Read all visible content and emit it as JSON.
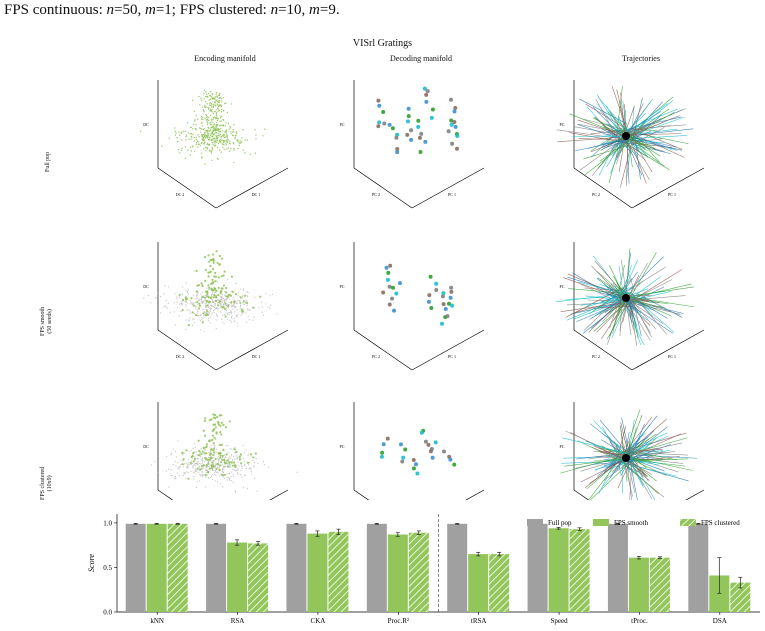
{
  "caption": "FPS continuous: n=50, m=1; FPS clustered: n=10, m=9.",
  "caption_parts": {
    "a": "FPS continuous: ",
    "n1": "n",
    "eq1": "=50, ",
    "m1": "m",
    "eq2": "=1; FPS clustered: ",
    "n2": "n",
    "eq3": "=10, ",
    "m2": "m",
    "eq4": "=9."
  },
  "figure_title": "VISrl Gratings",
  "column_titles": [
    "Encoding manifold",
    "Decoding manifold",
    "Trajectories"
  ],
  "row_labels": [
    {
      "line1": "Full pop",
      "line2": ""
    },
    {
      "line1": "FPS smooth",
      "line2": "(50 seeds)"
    },
    {
      "line1": "FPS clustered",
      "line2": "(10x9)"
    }
  ],
  "axis_labels": {
    "encoding": {
      "z": "DC",
      "x": "DC 2",
      "y": "DC 1"
    },
    "decoding": {
      "z": "PC",
      "x": "PC 2",
      "y": "PC 1"
    },
    "trajectories": {
      "z": "PC",
      "x": "PC 2",
      "y": "PC 1"
    }
  },
  "colors": {
    "full_pop": "#a0a0a0",
    "fps": "#92c65a",
    "encoding_points": "#8ec255",
    "encoding_grey": "#b5b5b5",
    "decoding_points": [
      "#8c6d62",
      "#3d8fd1",
      "#2ca02c",
      "#17becf",
      "#7f7f7f"
    ],
    "trajectory_lines": [
      "#17becf",
      "#8c564b",
      "#2ca02c",
      "#1f77b4",
      "#7f7f7f"
    ],
    "trajectory_center": "#000000"
  },
  "chart_data": {
    "type": "bar",
    "categories": [
      "kNN",
      "RSA",
      "CKA",
      "Proc.R²",
      "tRSA",
      "Speed",
      "tProc.",
      "DSA"
    ],
    "series": [
      {
        "name": "Full pop",
        "values": [
          0.99,
          0.99,
          0.99,
          0.99,
          0.99,
          0.99,
          0.99,
          0.99
        ],
        "errors": [
          0.005,
          0.005,
          0.005,
          0.005,
          0.005,
          0.005,
          0.005,
          0.005
        ]
      },
      {
        "name": "FPS smooth",
        "values": [
          0.99,
          0.78,
          0.88,
          0.87,
          0.65,
          0.94,
          0.61,
          0.41
        ],
        "errors": [
          0.005,
          0.03,
          0.03,
          0.02,
          0.02,
          0.01,
          0.015,
          0.2
        ]
      },
      {
        "name": "FPS clustered",
        "values": [
          0.99,
          0.77,
          0.9,
          0.89,
          0.65,
          0.93,
          0.61,
          0.33
        ],
        "errors": [
          0.005,
          0.02,
          0.03,
          0.02,
          0.02,
          0.015,
          0.01,
          0.06
        ]
      }
    ],
    "ylabel": "Score",
    "xlabel": "",
    "ylim": [
      0,
      1.1
    ],
    "yticks": [
      "0.0",
      "0.5",
      "1.0"
    ],
    "separator_after_index": 3,
    "legend_position": "top-right",
    "grid": false
  }
}
